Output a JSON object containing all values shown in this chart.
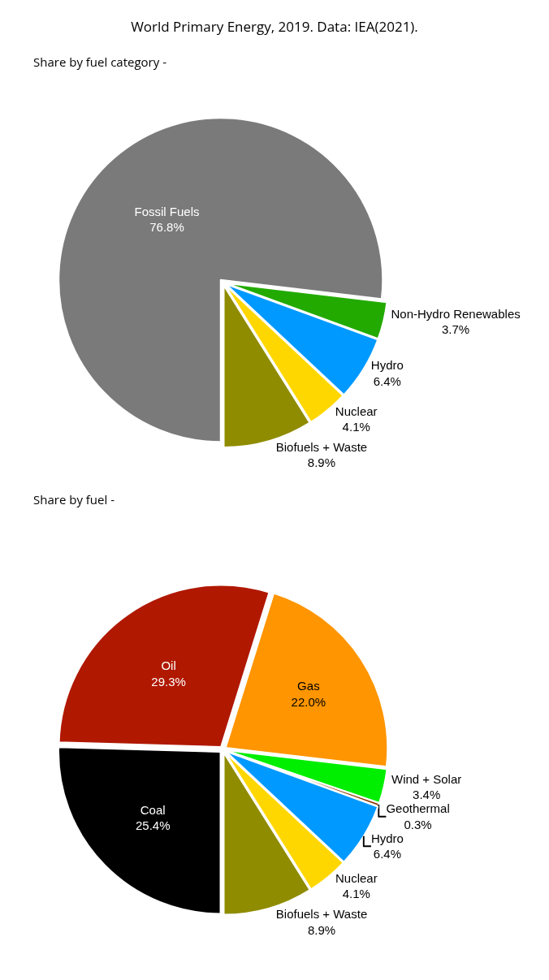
{
  "chart_data": [
    {
      "type": "pie",
      "title": "World Primary Energy, 2019. Data: IEA(2021).",
      "subtitle": "Share by fuel category -",
      "categories": [
        "Fossil Fuels",
        "Non-Hydro Renewables",
        "Hydro",
        "Nuclear",
        "Biofuels + Waste"
      ],
      "values": [
        76.8,
        3.7,
        6.4,
        4.1,
        8.9
      ],
      "value_labels": [
        "76.8%",
        "3.7%",
        "6.4%",
        "4.1%",
        "8.9%"
      ],
      "colors": [
        "#7a7a7a",
        "#22aa00",
        "#0099ff",
        "#ffd700",
        "#8f8c00"
      ],
      "legend": false
    },
    {
      "type": "pie",
      "subtitle": "Share by fuel -",
      "categories": [
        "Coal",
        "Oil",
        "Gas",
        "Wind + Solar",
        "Geothermal",
        "Hydro",
        "Nuclear",
        "Biofuels + Waste"
      ],
      "values": [
        25.4,
        29.3,
        22.0,
        3.4,
        0.3,
        6.4,
        4.1,
        8.9
      ],
      "value_labels": [
        "25.4%",
        "29.3%",
        "22.0%",
        "3.4%",
        "0.3%",
        "6.4%",
        "4.1%",
        "8.9%"
      ],
      "colors": [
        "#000000",
        "#b01800",
        "#ff9500",
        "#00ee00",
        "#8b3a00",
        "#0099ff",
        "#ffd700",
        "#8f8c00"
      ],
      "legend": false
    }
  ]
}
